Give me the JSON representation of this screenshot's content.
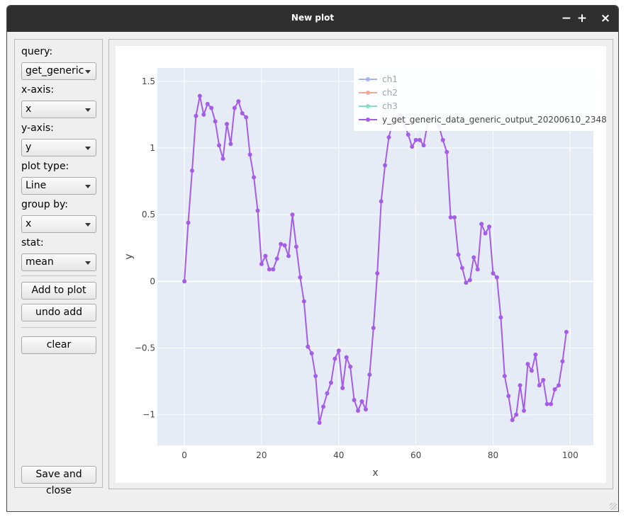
{
  "window": {
    "title": "New plot",
    "minimize": "−",
    "maximize": "+",
    "close": "×"
  },
  "sidebar": {
    "query_label": "query:",
    "query_value": "get_generic",
    "xaxis_label": "x-axis:",
    "xaxis_value": "x",
    "yaxis_label": "y-axis:",
    "yaxis_value": "y",
    "plottype_label": "plot type:",
    "plottype_value": "Line",
    "groupby_label": "group by:",
    "groupby_value": "x",
    "stat_label": "stat:",
    "stat_value": "mean",
    "add_button": "Add to plot",
    "undo_button": "undo add",
    "clear_button": "clear",
    "save_button": "Save and close"
  },
  "chart_data": {
    "type": "line",
    "xlabel": "x",
    "ylabel": "y",
    "xlim": [
      -7,
      106
    ],
    "ylim": [
      -1.23,
      1.6
    ],
    "xticks": [
      0,
      20,
      40,
      60,
      80,
      100
    ],
    "yticks": [
      -1,
      -0.5,
      0,
      0.5,
      1,
      1.5
    ],
    "yticklabels": [
      "−1",
      "−0.5",
      "0",
      "0.5",
      "1",
      "1.5"
    ],
    "grid": true,
    "legend_position": "top-right",
    "legend": [
      "ch1",
      "ch2",
      "ch3",
      "y_get_generic_data_generic_output_20200610_234806"
    ],
    "colors": {
      "ch1": "#a6b3f5",
      "ch2": "#f5a898",
      "ch3": "#86dfc1",
      "main": "#a55de8"
    },
    "series": [
      {
        "name": "ch1",
        "values": []
      },
      {
        "name": "ch2",
        "values": []
      },
      {
        "name": "ch3",
        "values": []
      },
      {
        "name": "y_get_generic_data_generic_output_20200610_234806",
        "x": [
          0,
          1,
          2,
          3,
          4,
          5,
          6,
          7,
          8,
          9,
          10,
          11,
          12,
          13,
          14,
          15,
          16,
          17,
          18,
          19,
          20,
          21,
          22,
          23,
          24,
          25,
          26,
          27,
          28,
          29,
          30,
          31,
          32,
          33,
          34,
          35,
          36,
          37,
          38,
          39,
          40,
          41,
          42,
          43,
          44,
          45,
          46,
          47,
          48,
          49,
          50,
          51,
          52,
          53,
          54,
          55,
          56,
          57,
          58,
          59,
          60,
          61,
          62,
          63,
          64,
          65,
          66,
          67,
          68,
          69,
          70,
          71,
          72,
          73,
          74,
          75,
          76,
          77,
          78,
          79,
          80,
          81,
          82,
          83,
          84,
          85,
          86,
          87,
          88,
          89,
          90,
          91,
          92,
          93,
          94,
          95,
          96,
          97,
          98,
          99
        ],
        "values": [
          0,
          0.44,
          0.83,
          1.24,
          1.39,
          1.25,
          1.33,
          1.3,
          1.2,
          1.02,
          0.92,
          1.18,
          1.03,
          1.3,
          1.35,
          1.26,
          1.23,
          0.95,
          0.78,
          0.53,
          0.13,
          0.19,
          0.09,
          0.09,
          0.17,
          0.28,
          0.27,
          0.19,
          0.5,
          0.26,
          0.03,
          -0.15,
          -0.49,
          -0.54,
          -0.71,
          -1.06,
          -0.94,
          -0.84,
          -0.76,
          -0.58,
          -0.52,
          -0.8,
          -0.57,
          -0.64,
          -0.89,
          -0.97,
          -0.9,
          -0.96,
          -0.7,
          -0.35,
          0.06,
          0.6,
          0.87,
          1.08,
          1.2,
          1.22,
          1.25,
          1.18,
          1.1,
          1.01,
          1.06,
          1.06,
          1.02,
          1.18,
          1.22,
          1.2,
          1.16,
          1.06,
          0.97,
          0.48,
          0.48,
          0.2,
          0.1,
          -0.01,
          0.01,
          0.18,
          0.09,
          0.43,
          0.36,
          0.41,
          0.06,
          0.03,
          -0.27,
          -0.71,
          -0.86,
          -1.04,
          -1.0,
          -0.78,
          -0.97,
          -0.62,
          -0.67,
          -0.55,
          -0.78,
          -0.74,
          -0.92,
          -0.92,
          -0.81,
          -0.78,
          -0.6,
          -0.38
        ]
      }
    ]
  }
}
